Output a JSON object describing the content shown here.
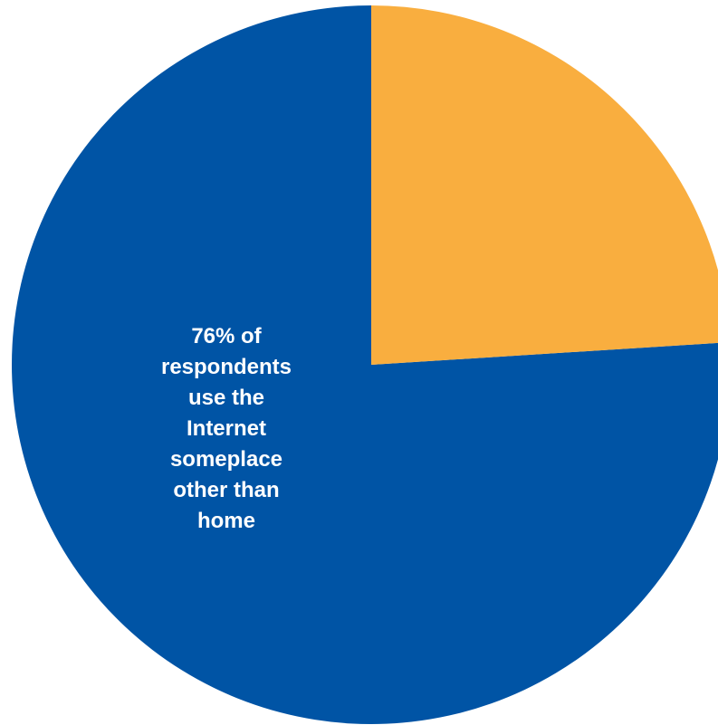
{
  "chart_data": {
    "type": "pie",
    "title": "",
    "slices": [
      {
        "value": 76,
        "color": "#0054A5",
        "label_lines": [
          "76% of",
          "respondents",
          "use the",
          "Internet",
          "someplace",
          "other than",
          "home"
        ]
      },
      {
        "value": 24,
        "color": "#F9AE3F",
        "label_lines": []
      }
    ],
    "start_angle_deg": 0,
    "direction": "counterclockwise",
    "legend": "none"
  }
}
